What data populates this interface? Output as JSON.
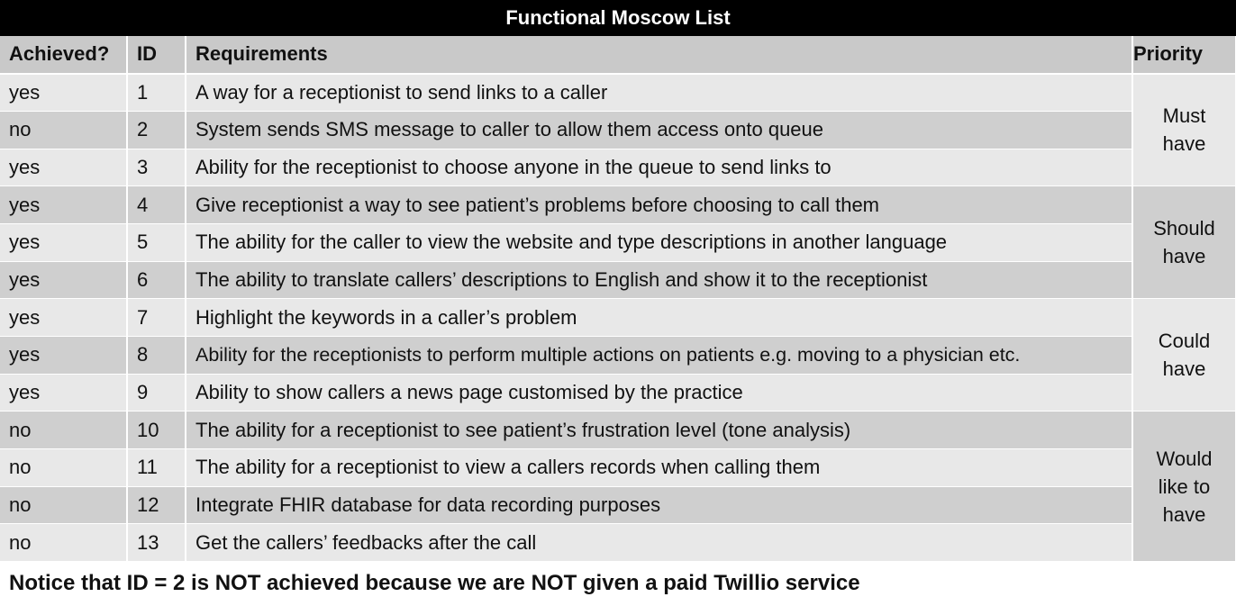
{
  "title": "Functional Moscow List",
  "headers": {
    "achieved": "Achieved?",
    "id": "ID",
    "requirements": "Requirements",
    "priority": "Priority"
  },
  "rows": [
    {
      "achieved": "yes",
      "id": "1",
      "requirement": "A way for a receptionist to send links to a caller"
    },
    {
      "achieved": "no",
      "id": "2",
      "requirement": "System sends SMS message to caller to allow them access onto queue"
    },
    {
      "achieved": "yes",
      "id": "3",
      "requirement": "Ability for the receptionist to choose anyone in the queue to send links to"
    },
    {
      "achieved": "yes",
      "id": "4",
      "requirement": "Give receptionist a way to see patient’s problems before choosing to call them"
    },
    {
      "achieved": "yes",
      "id": "5",
      "requirement": "The ability for the caller to view the website and type descriptions in another language"
    },
    {
      "achieved": "yes",
      "id": "6",
      "requirement": "The ability to translate callers’ descriptions to English and show it to the receptionist"
    },
    {
      "achieved": "yes",
      "id": "7",
      "requirement": "Highlight the keywords in a caller’s problem"
    },
    {
      "achieved": "yes",
      "id": "8",
      "requirement": "Ability for the receptionists to perform multiple actions on patients e.g. moving to a physician etc."
    },
    {
      "achieved": "yes",
      "id": "9",
      "requirement": "Ability to show callers a news page customised by the practice"
    },
    {
      "achieved": "no",
      "id": "10",
      "requirement": "The ability for a receptionist to see patient’s frustration level (tone analysis)"
    },
    {
      "achieved": "no",
      "id": "11",
      "requirement": "The ability for a receptionist to view a callers records when calling them"
    },
    {
      "achieved": "no",
      "id": "12",
      "requirement": "Integrate FHIR database for data recording purposes"
    },
    {
      "achieved": "no",
      "id": "13",
      "requirement": "Get the callers’ feedbacks after the call"
    }
  ],
  "priorities": [
    {
      "lines": [
        "Must",
        "have"
      ]
    },
    {
      "lines": [
        "Should",
        "have"
      ]
    },
    {
      "lines": [
        "Could",
        "have"
      ]
    },
    {
      "lines": [
        "Would",
        "like to",
        "have"
      ]
    }
  ],
  "note": "Notice that ID = 2 is NOT achieved because we are NOT given a paid Twillio service"
}
